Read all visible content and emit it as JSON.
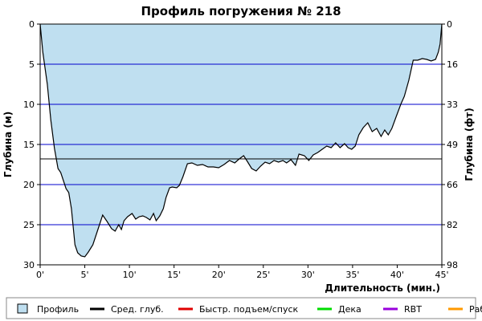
{
  "chart_data": {
    "type": "area",
    "title": "Профиль погружения № 218",
    "xlabel": "Длительность (мин.)",
    "ylabel_left": "Глубина (м)",
    "ylabel_right": "Глубина (фт)",
    "xlim": [
      0,
      45
    ],
    "ylim": [
      0,
      30
    ],
    "y_inverted": true,
    "x_ticks": [
      {
        "value": 0,
        "label": "0'"
      },
      {
        "value": 5,
        "label": "5'"
      },
      {
        "value": 10,
        "label": "10'"
      },
      {
        "value": 15,
        "label": "15'"
      },
      {
        "value": 20,
        "label": "20'"
      },
      {
        "value": 25,
        "label": "25'"
      },
      {
        "value": 30,
        "label": "30'"
      },
      {
        "value": 35,
        "label": "35'"
      },
      {
        "value": 40,
        "label": "40'"
      },
      {
        "value": 45,
        "label": "45'"
      }
    ],
    "y_ticks_left": [
      {
        "value": 0,
        "label": "0"
      },
      {
        "value": 5,
        "label": "5"
      },
      {
        "value": 10,
        "label": "10"
      },
      {
        "value": 15,
        "label": "15"
      },
      {
        "value": 20,
        "label": "20"
      },
      {
        "value": 25,
        "label": "25"
      },
      {
        "value": 30,
        "label": "30"
      }
    ],
    "y_ticks_right": [
      {
        "value": 0,
        "label": "0"
      },
      {
        "value": 5,
        "label": "16"
      },
      {
        "value": 10,
        "label": "33"
      },
      {
        "value": 15,
        "label": "49"
      },
      {
        "value": 20,
        "label": "66"
      },
      {
        "value": 25,
        "label": "82"
      },
      {
        "value": 30,
        "label": "98"
      }
    ],
    "grid_y": true,
    "average_depth": 16.8,
    "profile": {
      "x": [
        0,
        0.3,
        0.8,
        1.2,
        1.6,
        2.0,
        2.3,
        2.6,
        2.9,
        3.2,
        3.5,
        3.9,
        4.2,
        4.6,
        5.0,
        5.4,
        5.9,
        6.5,
        7.0,
        7.5,
        8.0,
        8.4,
        8.8,
        9.1,
        9.4,
        9.8,
        10.3,
        10.7,
        11.1,
        11.5,
        11.9,
        12.3,
        12.7,
        13.0,
        13.4,
        13.8,
        14.1,
        14.5,
        14.8,
        15.3,
        15.6,
        16.0,
        16.5,
        17.0,
        17.6,
        18.2,
        18.8,
        19.4,
        20.0,
        20.6,
        21.2,
        21.8,
        22.3,
        22.8,
        23.2,
        23.7,
        24.2,
        24.7,
        25.2,
        25.7,
        26.2,
        26.7,
        27.2,
        27.6,
        28.1,
        28.6,
        29.0,
        29.6,
        30.1,
        30.6,
        31.1,
        31.6,
        32.1,
        32.6,
        33.1,
        33.6,
        34.1,
        34.5,
        34.9,
        35.3,
        35.7,
        36.2,
        36.7,
        37.2,
        37.7,
        38.2,
        38.6,
        39.0,
        39.4,
        39.9,
        40.4,
        40.8,
        41.3,
        41.8,
        42.3,
        42.8,
        43.3,
        43.8,
        44.3,
        44.6,
        44.8,
        45.0
      ],
      "depth": [
        0,
        3.5,
        7.5,
        12.0,
        15.5,
        18.0,
        18.5,
        19.5,
        20.5,
        21.0,
        23.0,
        27.5,
        28.5,
        28.9,
        29.0,
        28.4,
        27.5,
        25.5,
        23.8,
        24.6,
        25.5,
        25.8,
        25.0,
        25.6,
        24.5,
        24.0,
        23.6,
        24.3,
        24.0,
        23.9,
        24.1,
        24.4,
        23.6,
        24.5,
        23.9,
        23.0,
        21.6,
        20.4,
        20.3,
        20.4,
        20.1,
        19.0,
        17.4,
        17.3,
        17.6,
        17.5,
        17.8,
        17.8,
        17.9,
        17.5,
        17.0,
        17.3,
        16.8,
        16.4,
        17.1,
        18.0,
        18.3,
        17.7,
        17.2,
        17.4,
        17.0,
        17.2,
        17.0,
        17.3,
        16.9,
        17.6,
        16.2,
        16.4,
        17.0,
        16.3,
        16.0,
        15.6,
        15.2,
        15.4,
        14.8,
        15.4,
        14.9,
        15.4,
        15.6,
        15.2,
        13.8,
        12.9,
        12.3,
        13.4,
        13.0,
        14.0,
        13.2,
        13.8,
        13.0,
        11.5,
        10.0,
        9.0,
        7.0,
        4.5,
        4.5,
        4.3,
        4.4,
        4.6,
        4.4,
        3.5,
        2.5,
        0
      ]
    },
    "legend": [
      {
        "name": "Профиль",
        "color": "#bfdff0",
        "kind": "box"
      },
      {
        "name": "Сред. глуб.",
        "color": "#000000",
        "kind": "line"
      },
      {
        "name": "Быстр. подъем/спуск",
        "color": "#e00000",
        "kind": "line"
      },
      {
        "name": "Дека",
        "color": "#00dd00",
        "kind": "line"
      },
      {
        "name": "RBT",
        "color": "#9900dd",
        "kind": "line"
      },
      {
        "name": "Раб.",
        "color": "#ff9900",
        "kind": "line"
      }
    ],
    "legend_position": "bottom",
    "colors": {
      "fill": "#bfdff0",
      "profile_line": "#000000",
      "grid": "#0000cc",
      "avg_line": "#000000"
    }
  }
}
